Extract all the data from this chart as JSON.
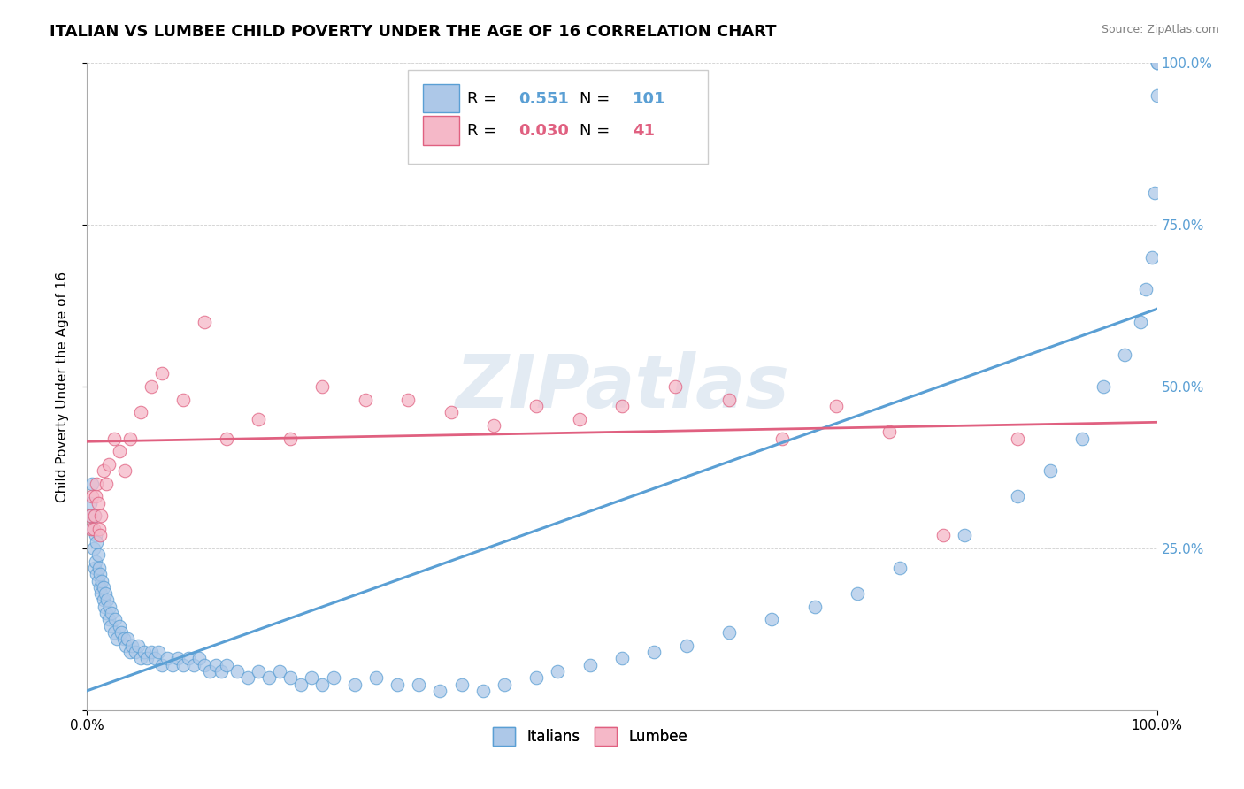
{
  "title": "ITALIAN VS LUMBEE CHILD POVERTY UNDER THE AGE OF 16 CORRELATION CHART",
  "source": "Source: ZipAtlas.com",
  "ylabel": "Child Poverty Under the Age of 16",
  "xlim": [
    0,
    1
  ],
  "ylim": [
    0,
    1
  ],
  "ytick_labels": [
    "",
    "25.0%",
    "50.0%",
    "75.0%",
    "100.0%"
  ],
  "ytick_positions": [
    0,
    0.25,
    0.5,
    0.75,
    1.0
  ],
  "italian_R": "0.551",
  "italian_N": "101",
  "lumbee_R": "0.030",
  "lumbee_N": "41",
  "italian_color": "#adc8e8",
  "italian_edge_color": "#5a9fd4",
  "lumbee_color": "#f5b8c8",
  "lumbee_edge_color": "#e06080",
  "watermark_text": "ZIPatlas",
  "title_fontsize": 13,
  "label_fontsize": 11,
  "italian_line": {
    "x0": 0.0,
    "x1": 1.0,
    "y0": 0.03,
    "y1": 0.62
  },
  "lumbee_line": {
    "x0": 0.0,
    "x1": 1.0,
    "y0": 0.415,
    "y1": 0.445
  },
  "background_color": "#ffffff",
  "grid_color": "#d0d0d0",
  "italian_scatter_x": [
    0.003,
    0.004,
    0.005,
    0.005,
    0.006,
    0.007,
    0.007,
    0.008,
    0.008,
    0.009,
    0.009,
    0.01,
    0.01,
    0.011,
    0.012,
    0.012,
    0.013,
    0.014,
    0.015,
    0.015,
    0.016,
    0.017,
    0.018,
    0.019,
    0.02,
    0.021,
    0.022,
    0.023,
    0.025,
    0.026,
    0.028,
    0.03,
    0.032,
    0.034,
    0.036,
    0.038,
    0.04,
    0.042,
    0.045,
    0.048,
    0.05,
    0.053,
    0.056,
    0.06,
    0.063,
    0.067,
    0.07,
    0.075,
    0.08,
    0.085,
    0.09,
    0.095,
    0.1,
    0.105,
    0.11,
    0.115,
    0.12,
    0.125,
    0.13,
    0.14,
    0.15,
    0.16,
    0.17,
    0.18,
    0.19,
    0.2,
    0.21,
    0.22,
    0.23,
    0.25,
    0.27,
    0.29,
    0.31,
    0.33,
    0.35,
    0.37,
    0.39,
    0.42,
    0.44,
    0.47,
    0.5,
    0.53,
    0.56,
    0.6,
    0.64,
    0.68,
    0.72,
    0.76,
    0.82,
    0.87,
    0.9,
    0.93,
    0.95,
    0.97,
    0.985,
    0.99,
    0.995,
    0.998,
    1.0,
    1.0,
    1.0
  ],
  "italian_scatter_y": [
    0.32,
    0.3,
    0.28,
    0.35,
    0.25,
    0.3,
    0.22,
    0.27,
    0.23,
    0.26,
    0.21,
    0.24,
    0.2,
    0.22,
    0.19,
    0.21,
    0.18,
    0.2,
    0.17,
    0.19,
    0.16,
    0.18,
    0.15,
    0.17,
    0.14,
    0.16,
    0.13,
    0.15,
    0.12,
    0.14,
    0.11,
    0.13,
    0.12,
    0.11,
    0.1,
    0.11,
    0.09,
    0.1,
    0.09,
    0.1,
    0.08,
    0.09,
    0.08,
    0.09,
    0.08,
    0.09,
    0.07,
    0.08,
    0.07,
    0.08,
    0.07,
    0.08,
    0.07,
    0.08,
    0.07,
    0.06,
    0.07,
    0.06,
    0.07,
    0.06,
    0.05,
    0.06,
    0.05,
    0.06,
    0.05,
    0.04,
    0.05,
    0.04,
    0.05,
    0.04,
    0.05,
    0.04,
    0.04,
    0.03,
    0.04,
    0.03,
    0.04,
    0.05,
    0.06,
    0.07,
    0.08,
    0.09,
    0.1,
    0.12,
    0.14,
    0.16,
    0.18,
    0.22,
    0.27,
    0.33,
    0.37,
    0.42,
    0.5,
    0.55,
    0.6,
    0.65,
    0.7,
    0.8,
    0.95,
    1.0,
    1.0
  ],
  "lumbee_scatter_x": [
    0.003,
    0.004,
    0.005,
    0.006,
    0.007,
    0.008,
    0.009,
    0.01,
    0.011,
    0.012,
    0.013,
    0.015,
    0.018,
    0.02,
    0.025,
    0.03,
    0.035,
    0.04,
    0.05,
    0.06,
    0.07,
    0.09,
    0.11,
    0.13,
    0.16,
    0.19,
    0.22,
    0.26,
    0.3,
    0.34,
    0.38,
    0.42,
    0.46,
    0.5,
    0.55,
    0.6,
    0.65,
    0.7,
    0.75,
    0.8,
    0.87
  ],
  "lumbee_scatter_y": [
    0.3,
    0.28,
    0.33,
    0.28,
    0.3,
    0.33,
    0.35,
    0.32,
    0.28,
    0.27,
    0.3,
    0.37,
    0.35,
    0.38,
    0.42,
    0.4,
    0.37,
    0.42,
    0.46,
    0.5,
    0.52,
    0.48,
    0.6,
    0.42,
    0.45,
    0.42,
    0.5,
    0.48,
    0.48,
    0.46,
    0.44,
    0.47,
    0.45,
    0.47,
    0.5,
    0.48,
    0.42,
    0.47,
    0.43,
    0.27,
    0.42
  ]
}
